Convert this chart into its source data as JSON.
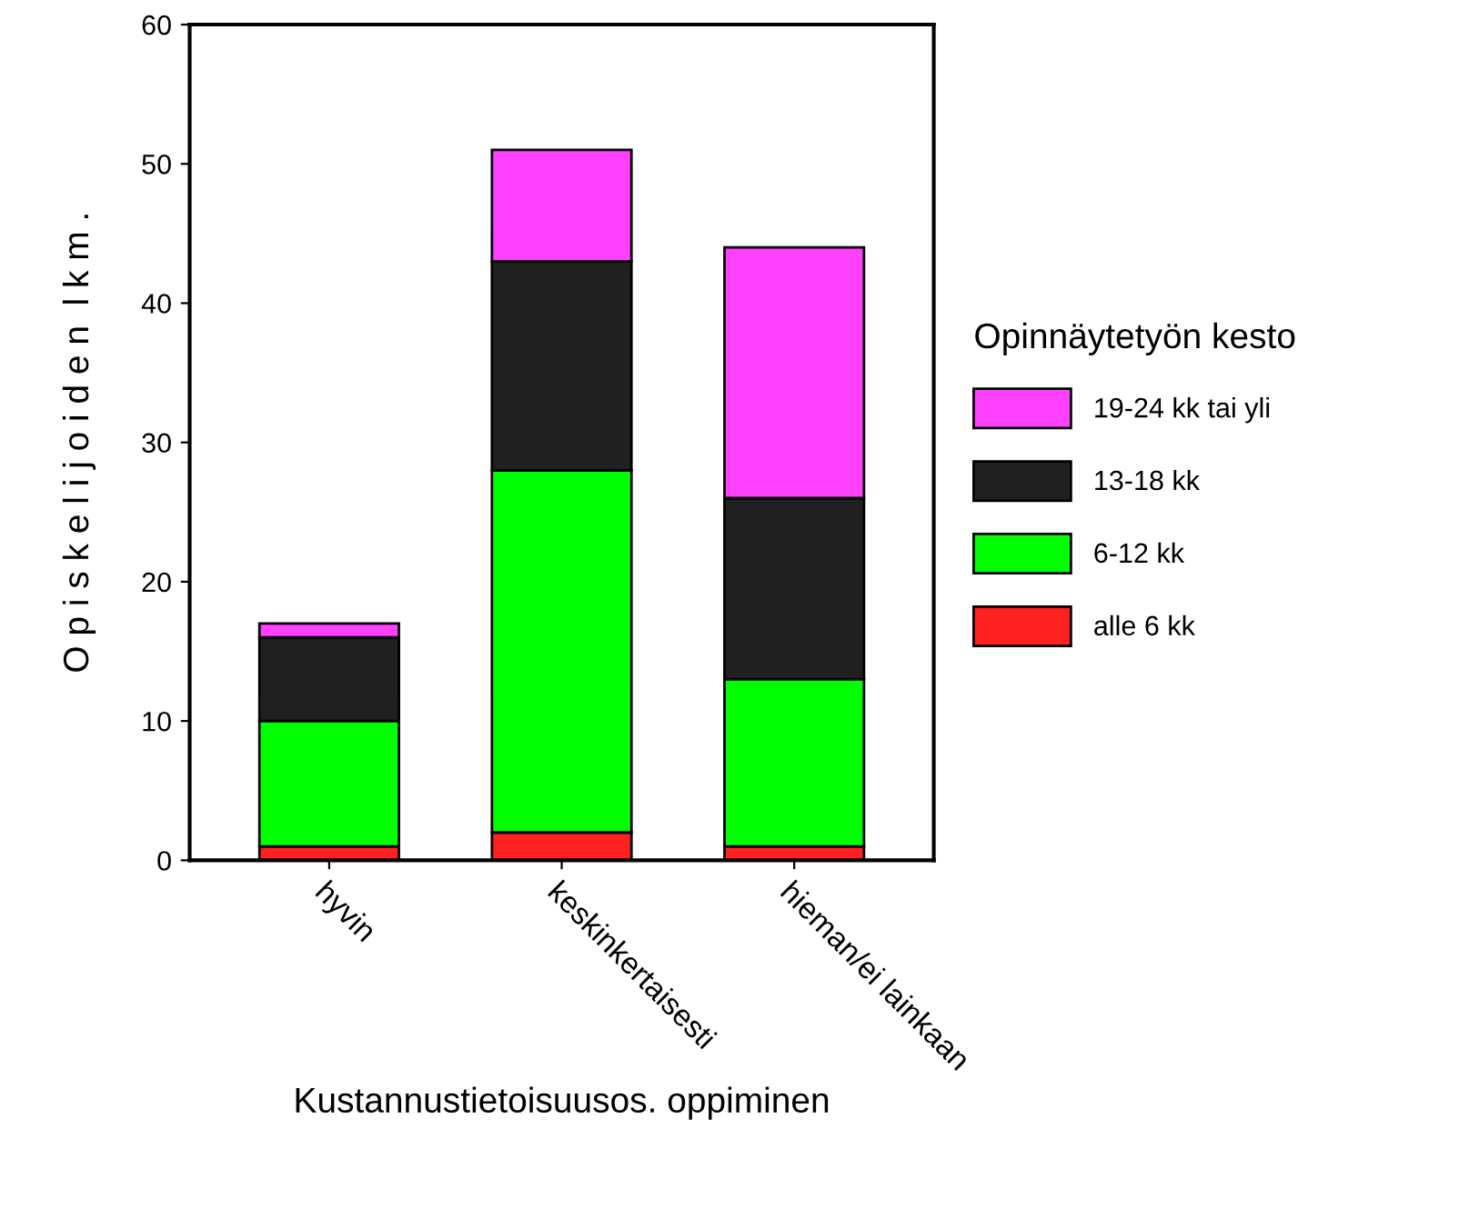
{
  "chart_data": {
    "type": "bar",
    "stacked": true,
    "xlabel": "Kustannustietoisuusos. oppiminen",
    "ylabel": "O p i s k e l i j o i d e n  l k m .",
    "legend_title": "Opinnäytetyön kesto",
    "legend": "right",
    "categories": [
      "hyvin",
      "keskinkertaisesti",
      "hieman/ei lainkaan"
    ],
    "series": [
      {
        "name": "alle 6 kk",
        "color": "#ff2020",
        "values": [
          1,
          2,
          1
        ]
      },
      {
        "name": "6-12 kk",
        "color": "#00ff00",
        "values": [
          9,
          26,
          12
        ]
      },
      {
        "name": "13-18 kk",
        "color": "#202020",
        "values": [
          6,
          15,
          13
        ]
      },
      {
        "name": "19-24 kk tai yli",
        "color": "#ff40ff",
        "values": [
          1,
          8,
          18
        ]
      }
    ],
    "ylim": [
      0,
      60
    ],
    "yticks": [
      0,
      10,
      20,
      30,
      40,
      50,
      60
    ],
    "grid": false
  }
}
